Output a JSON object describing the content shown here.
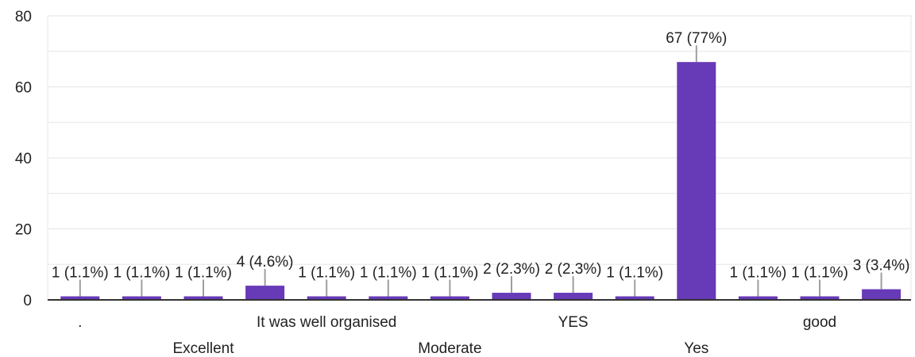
{
  "chart_data": {
    "type": "bar",
    "ylim": [
      0,
      80
    ],
    "yticks": [
      0,
      20,
      40,
      60,
      80
    ],
    "grid": true,
    "colors": {
      "bar": "#673ab7",
      "grid": "#e5e5e5",
      "leader": "#9e9e9e",
      "axis": "#333333"
    },
    "categories": [
      ".",
      "",
      "Excellent",
      "",
      "It was well organised",
      "",
      "Moderate",
      "",
      "YES",
      "",
      "Yes",
      "",
      "good",
      ""
    ],
    "values": [
      1,
      1,
      1,
      4,
      1,
      1,
      1,
      2,
      2,
      1,
      67,
      1,
      1,
      3
    ],
    "labels": [
      "1 (1.1%)",
      "1 (1.1%)",
      "1 (1.1%)",
      "4 (4.6%)",
      "1 (1.1%)",
      "1 (1.1%)",
      "1 (1.1%)",
      "2 (2.3%)",
      "2 (2.3%)",
      "1 (1.1%)",
      "67 (77%)",
      "1 (1.1%)",
      "1 (1.1%)",
      "3 (3.4%)"
    ]
  }
}
